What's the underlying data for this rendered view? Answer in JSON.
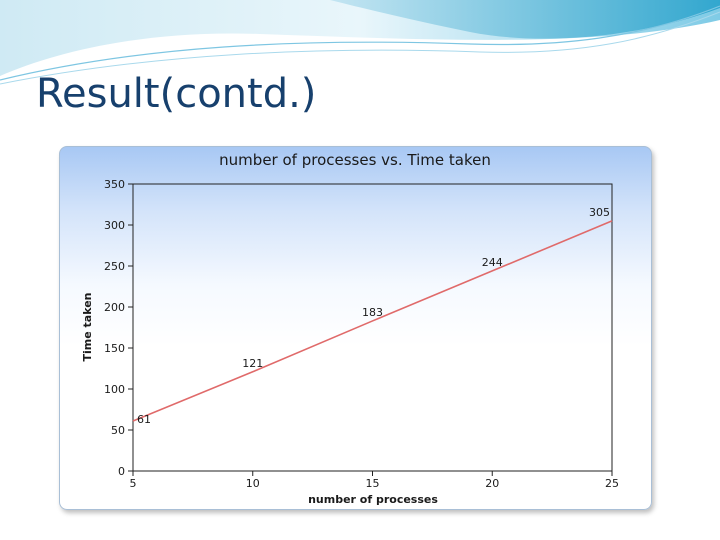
{
  "slide": {
    "title": "Result(contd.)"
  },
  "colors": {
    "title": "#17406d",
    "line": "#e06a6a",
    "header_light": "#d6eef7",
    "header_dark": "#2ea7cf"
  },
  "chart_data": {
    "type": "line",
    "title": "number of processes vs. Time taken",
    "xlabel": "number of processes",
    "ylabel": "Time taken",
    "xlim": [
      5,
      25
    ],
    "ylim": [
      0,
      350
    ],
    "x_ticks": [
      "5",
      "10",
      "15",
      "20",
      "25"
    ],
    "y_ticks": [
      "0",
      "50",
      "100",
      "150",
      "200",
      "250",
      "300",
      "350"
    ],
    "grid": false,
    "legend": "none",
    "series": [
      {
        "x": [
          5,
          10,
          15,
          20,
          25
        ],
        "values": [
          61,
          121,
          183,
          244,
          305
        ],
        "labels": [
          "61",
          "121",
          "183",
          "244",
          "305"
        ]
      }
    ]
  }
}
